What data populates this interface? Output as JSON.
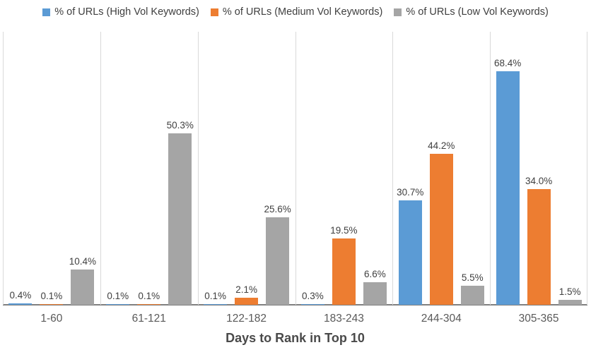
{
  "chart_data": {
    "type": "bar",
    "title": "",
    "xlabel": "Days to Rank in Top 10",
    "ylabel": "",
    "ylim": [
      0,
      80
    ],
    "grid": "vertical-category-boundaries",
    "legend_position": "top",
    "categories": [
      "1-60",
      "61-121",
      "122-182",
      "183-243",
      "244-304",
      "305-365"
    ],
    "series": [
      {
        "name": "% of URLs (High Vol Keywords)",
        "color": "#5b9bd5",
        "values": [
          0.4,
          0.1,
          0.1,
          0.3,
          30.7,
          68.4
        ],
        "labels": [
          "0.4%",
          "0.1%",
          "0.1%",
          "0.3%",
          "30.7%",
          "68.4%"
        ]
      },
      {
        "name": "% of URLs (Medium Vol Keywords)",
        "color": "#ed7d31",
        "values": [
          0.1,
          0.1,
          2.1,
          19.5,
          44.2,
          34.0
        ],
        "labels": [
          "0.1%",
          "0.1%",
          "2.1%",
          "19.5%",
          "44.2%",
          "34.0%"
        ]
      },
      {
        "name": "% of URLs (Low Vol Keywords)",
        "color": "#a5a5a5",
        "values": [
          10.4,
          50.3,
          25.6,
          6.6,
          5.5,
          1.5
        ],
        "labels": [
          "10.4%",
          "50.3%",
          "25.6%",
          "6.6%",
          "5.5%",
          "1.5%"
        ]
      }
    ]
  },
  "legend": {
    "items": [
      {
        "label": "% of URLs (High Vol Keywords)",
        "color": "#5b9bd5",
        "icon": "square-swatch-icon"
      },
      {
        "label": "% of URLs (Medium Vol Keywords)",
        "color": "#ed7d31",
        "icon": "square-swatch-icon"
      },
      {
        "label": "% of URLs (Low Vol Keywords)",
        "color": "#a5a5a5",
        "icon": "square-swatch-icon"
      }
    ]
  },
  "colors": {
    "background": "#ffffff",
    "gridline": "#d9d9d9",
    "axis_line": "#7f7f7f",
    "data_label_text": "#404040",
    "category_text": "#595959",
    "axis_title_text": "#4a4a4a",
    "legend_text": "#3f3f3f"
  }
}
